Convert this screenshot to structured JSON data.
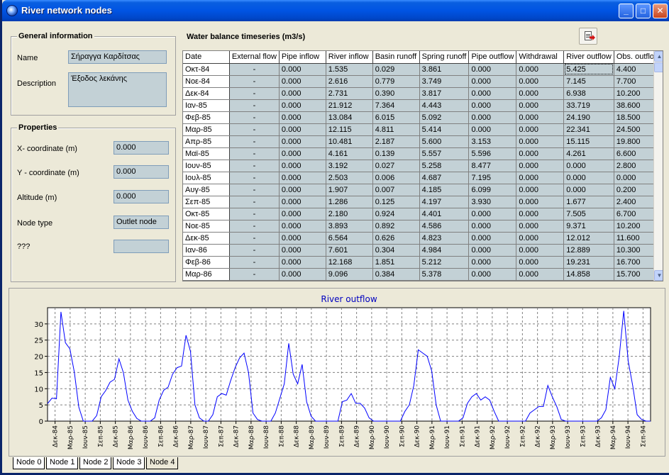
{
  "window": {
    "title": "River network nodes"
  },
  "general": {
    "title": "General information",
    "name_label": "Name",
    "name_value": "Σήραγγα Καρδίτσας",
    "description_label": "Description",
    "description_value": "Έξοδος λεκάνης"
  },
  "properties": {
    "title": "Properties",
    "x_label": "X- coordinate (m)",
    "x_value": "0.000",
    "y_label": "Y - coordinate (m)",
    "y_value": "0.000",
    "alt_label": "Altitude (m)",
    "alt_value": "0.000",
    "type_label": "Node type",
    "type_value": "Outlet node",
    "unknown_label": "???",
    "unknown_value": ""
  },
  "table": {
    "title": "Water balance timeseries (m3/s)",
    "columns": [
      "Date",
      "External flow",
      "Pipe inflow",
      "River inflow",
      "Basin runoff",
      "Spring runoff",
      "Pipe outflow",
      "Withdrawal",
      "River outflow",
      "Obs. outflow"
    ],
    "rows": [
      [
        "Οκτ-84",
        "-",
        "0.000",
        "1.535",
        "0.029",
        "3.861",
        "0.000",
        "0.000",
        "5.425",
        "4.400"
      ],
      [
        "Νοε-84",
        "-",
        "0.000",
        "2.616",
        "0.779",
        "3.749",
        "0.000",
        "0.000",
        "7.145",
        "7.700"
      ],
      [
        "Δεκ-84",
        "-",
        "0.000",
        "2.731",
        "0.390",
        "3.817",
        "0.000",
        "0.000",
        "6.938",
        "10.200"
      ],
      [
        "Ιαν-85",
        "-",
        "0.000",
        "21.912",
        "7.364",
        "4.443",
        "0.000",
        "0.000",
        "33.719",
        "38.600"
      ],
      [
        "Φεβ-85",
        "-",
        "0.000",
        "13.084",
        "6.015",
        "5.092",
        "0.000",
        "0.000",
        "24.190",
        "18.500"
      ],
      [
        "Μαρ-85",
        "-",
        "0.000",
        "12.115",
        "4.811",
        "5.414",
        "0.000",
        "0.000",
        "22.341",
        "24.500"
      ],
      [
        "Απρ-85",
        "-",
        "0.000",
        "10.481",
        "2.187",
        "5.600",
        "3.153",
        "0.000",
        "15.115",
        "19.800"
      ],
      [
        "Μαϊ-85",
        "-",
        "0.000",
        "4.161",
        "0.139",
        "5.557",
        "5.596",
        "0.000",
        "4.261",
        "6.600"
      ],
      [
        "Ιουν-85",
        "-",
        "0.000",
        "3.192",
        "0.027",
        "5.258",
        "8.477",
        "0.000",
        "0.000",
        "2.800"
      ],
      [
        "Ιουλ-85",
        "-",
        "0.000",
        "2.503",
        "0.006",
        "4.687",
        "7.195",
        "0.000",
        "0.000",
        "0.000"
      ],
      [
        "Αυγ-85",
        "-",
        "0.000",
        "1.907",
        "0.007",
        "4.185",
        "6.099",
        "0.000",
        "0.000",
        "0.200"
      ],
      [
        "Σεπ-85",
        "-",
        "0.000",
        "1.286",
        "0.125",
        "4.197",
        "3.930",
        "0.000",
        "1.677",
        "2.400"
      ],
      [
        "Οκτ-85",
        "-",
        "0.000",
        "2.180",
        "0.924",
        "4.401",
        "0.000",
        "0.000",
        "7.505",
        "6.700"
      ],
      [
        "Νοε-85",
        "-",
        "0.000",
        "3.893",
        "0.892",
        "4.586",
        "0.000",
        "0.000",
        "9.371",
        "10.200"
      ],
      [
        "Δεκ-85",
        "-",
        "0.000",
        "6.564",
        "0.626",
        "4.823",
        "0.000",
        "0.000",
        "12.012",
        "11.600"
      ],
      [
        "Ιαν-86",
        "-",
        "0.000",
        "7.601",
        "0.304",
        "4.984",
        "0.000",
        "0.000",
        "12.889",
        "10.300"
      ],
      [
        "Φεβ-86",
        "-",
        "0.000",
        "12.168",
        "1.851",
        "5.212",
        "0.000",
        "0.000",
        "19.231",
        "16.700"
      ],
      [
        "Μαρ-86",
        "-",
        "0.000",
        "9.096",
        "0.384",
        "5.378",
        "0.000",
        "0.000",
        "14.858",
        "15.700"
      ]
    ]
  },
  "chart_data": {
    "type": "line",
    "title": "River outflow",
    "xlabel": "",
    "ylabel": "",
    "ylim": [
      0,
      35
    ],
    "yticks": [
      0,
      5,
      10,
      15,
      20,
      25,
      30
    ],
    "grid": true,
    "x_tick_labels": [
      "Δεκ-84",
      "Μαρ-85",
      "Ιουν-85",
      "Σεπ-85",
      "Δεκ-85",
      "Μαρ-86",
      "Ιουν-86",
      "Σεπ-86",
      "Δεκ-86",
      "Μαρ-87",
      "Ιουν-87",
      "Σεπ-87",
      "Δεκ-87",
      "Μαρ-88",
      "Ιουν-88",
      "Σεπ-88",
      "Δεκ-88",
      "Μαρ-89",
      "Ιουν-89",
      "Σεπ-89",
      "Δεκ-89",
      "Μαρ-90",
      "Ιουν-90",
      "Σεπ-90",
      "Δεκ-90",
      "Μαρ-91",
      "Ιουν-91",
      "Σεπ-91",
      "Δεκ-91",
      "Μαρ-92",
      "Ιουν-92",
      "Σεπ-92",
      "Δεκ-92",
      "Μαρ-93",
      "Ιουν-93",
      "Σεπ-93",
      "Δεκ-93",
      "Μαρ-94",
      "Ιουν-94",
      "Σεπ-94"
    ],
    "series": [
      {
        "color": "#0000ff",
        "values": [
          5.4,
          7.1,
          6.9,
          33.7,
          24.2,
          22.3,
          15.1,
          4.3,
          0,
          0,
          0,
          1.7,
          7.5,
          9.4,
          12.0,
          12.9,
          19.2,
          14.9,
          6.5,
          3.0,
          0.8,
          0,
          0,
          0,
          1.0,
          6.5,
          9.5,
          10.5,
          14.5,
          16.5,
          17.0,
          26.5,
          21.5,
          5.0,
          1.0,
          0,
          0,
          2.0,
          7.5,
          8.5,
          8.0,
          12.5,
          16.5,
          19.5,
          21.0,
          15.0,
          2.5,
          0.5,
          0,
          0,
          0,
          2.5,
          7.0,
          11.5,
          24.0,
          14.5,
          11.5,
          17.5,
          6.0,
          1.5,
          0,
          0,
          0,
          0,
          0,
          0,
          6.0,
          6.5,
          8.5,
          5.5,
          5.5,
          4.0,
          1.0,
          0,
          0,
          0,
          0,
          0,
          0,
          0,
          3.0,
          5.0,
          11.0,
          22.0,
          21.0,
          20.0,
          15.5,
          5.0,
          0,
          0,
          0,
          0,
          0,
          1.0,
          5.5,
          7.5,
          8.5,
          6.5,
          7.5,
          6.5,
          3.0,
          0,
          0,
          0,
          0,
          0,
          0,
          0,
          2.5,
          3.5,
          4.5,
          4.5,
          11.0,
          7.5,
          4.5,
          0.5,
          0,
          0,
          0,
          0,
          0,
          0,
          0,
          0,
          1.0,
          3.5,
          13.5,
          10.0,
          20.0,
          34.0,
          18.5,
          11.0,
          2.0,
          0.5,
          0,
          0
        ]
      }
    ]
  },
  "tabs": [
    "Node 0",
    "Node 1",
    "Node 2",
    "Node 3",
    "Node 4"
  ],
  "active_tab": 4
}
